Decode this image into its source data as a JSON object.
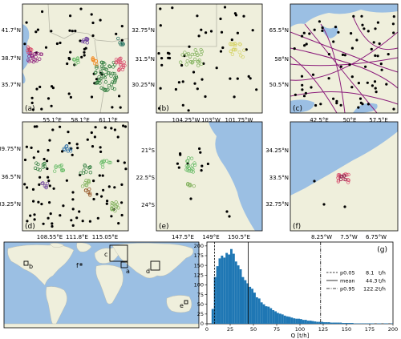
{
  "colors": {
    "land": "#efefdc",
    "water": "#9bbfe3",
    "border": "#b7b7a8",
    "pipeline": "#8b1b7a",
    "bar": "#1f77b4"
  },
  "panels": [
    {
      "id": "a",
      "label": "(a)",
      "xticks": [
        "55.1°E",
        "58.1°E",
        "61.1°E"
      ],
      "yticks": [
        "41.7°N",
        "38.7°N",
        "35.7°N"
      ]
    },
    {
      "id": "b",
      "label": "(b)",
      "xticks": [
        "104.25°W",
        "103°W",
        "101.75°W"
      ],
      "yticks": [
        "32.75°N",
        "31.5°N",
        "30.25°N"
      ]
    },
    {
      "id": "c",
      "label": "(c)",
      "xticks": [
        "42.5°E",
        "50°E",
        "57.5°E"
      ],
      "yticks": [
        "65.5°N",
        "58°N",
        "50.5°N"
      ]
    },
    {
      "id": "d",
      "label": "(d)",
      "xticks": [
        "108.55°E",
        "111.8°E",
        "115.05°E"
      ],
      "yticks": [
        "39.75°N",
        "36.5°N",
        "33.25°N"
      ]
    },
    {
      "id": "e",
      "label": "(e)",
      "xticks": [
        "147.5°E",
        "149°E",
        "150.5°E"
      ],
      "yticks": [
        "21°S",
        "22.5°S",
        "24°S"
      ]
    },
    {
      "id": "f",
      "label": "(f)",
      "xticks": [
        "8.25°W",
        "7.5°W",
        "6.75°W"
      ],
      "yticks": [
        "34.25°N",
        "33.5°N",
        "32.75°N"
      ]
    }
  ],
  "world_map": {
    "region_letters": [
      "a",
      "b",
      "c",
      "d",
      "e",
      "f"
    ]
  },
  "chart_data": {
    "type": "bar",
    "label": "(g)",
    "xlabel": "Q [t/h]",
    "ylabel": "",
    "xlim": [
      0,
      200
    ],
    "ylim": [
      0,
      210
    ],
    "xticks": [
      0,
      25,
      50,
      75,
      100,
      125,
      150,
      175,
      200
    ],
    "yticks": [
      0,
      25,
      50,
      75,
      100,
      125,
      150,
      175,
      200
    ],
    "bin_width": 2.5,
    "bin_start": 5,
    "values": [
      38,
      120,
      148,
      168,
      175,
      170,
      182,
      178,
      192,
      180,
      160,
      150,
      140,
      120,
      112,
      104,
      95,
      90,
      80,
      68,
      65,
      55,
      50,
      45,
      44,
      40,
      35,
      32,
      28,
      26,
      24,
      21,
      19,
      18,
      16,
      14,
      13,
      13,
      12,
      10,
      10,
      8,
      8,
      7,
      6,
      5,
      5,
      5,
      4,
      4,
      4,
      3,
      3,
      3,
      3,
      3,
      2,
      2,
      2,
      2,
      2,
      1,
      1,
      1,
      1,
      1,
      1,
      1,
      1,
      1,
      0,
      1,
      1,
      0,
      1,
      1,
      0,
      1
    ],
    "vlines": [
      {
        "name": "p0.05",
        "value": 8.1,
        "unit": "t/h",
        "style": "dashed"
      },
      {
        "name": "mean",
        "value": 44.3,
        "unit": "t/h",
        "style": "solid"
      },
      {
        "name": "p0.95",
        "value": 122.2,
        "unit": "t/h",
        "style": "dashdot"
      }
    ],
    "legend_position": "center-right"
  }
}
